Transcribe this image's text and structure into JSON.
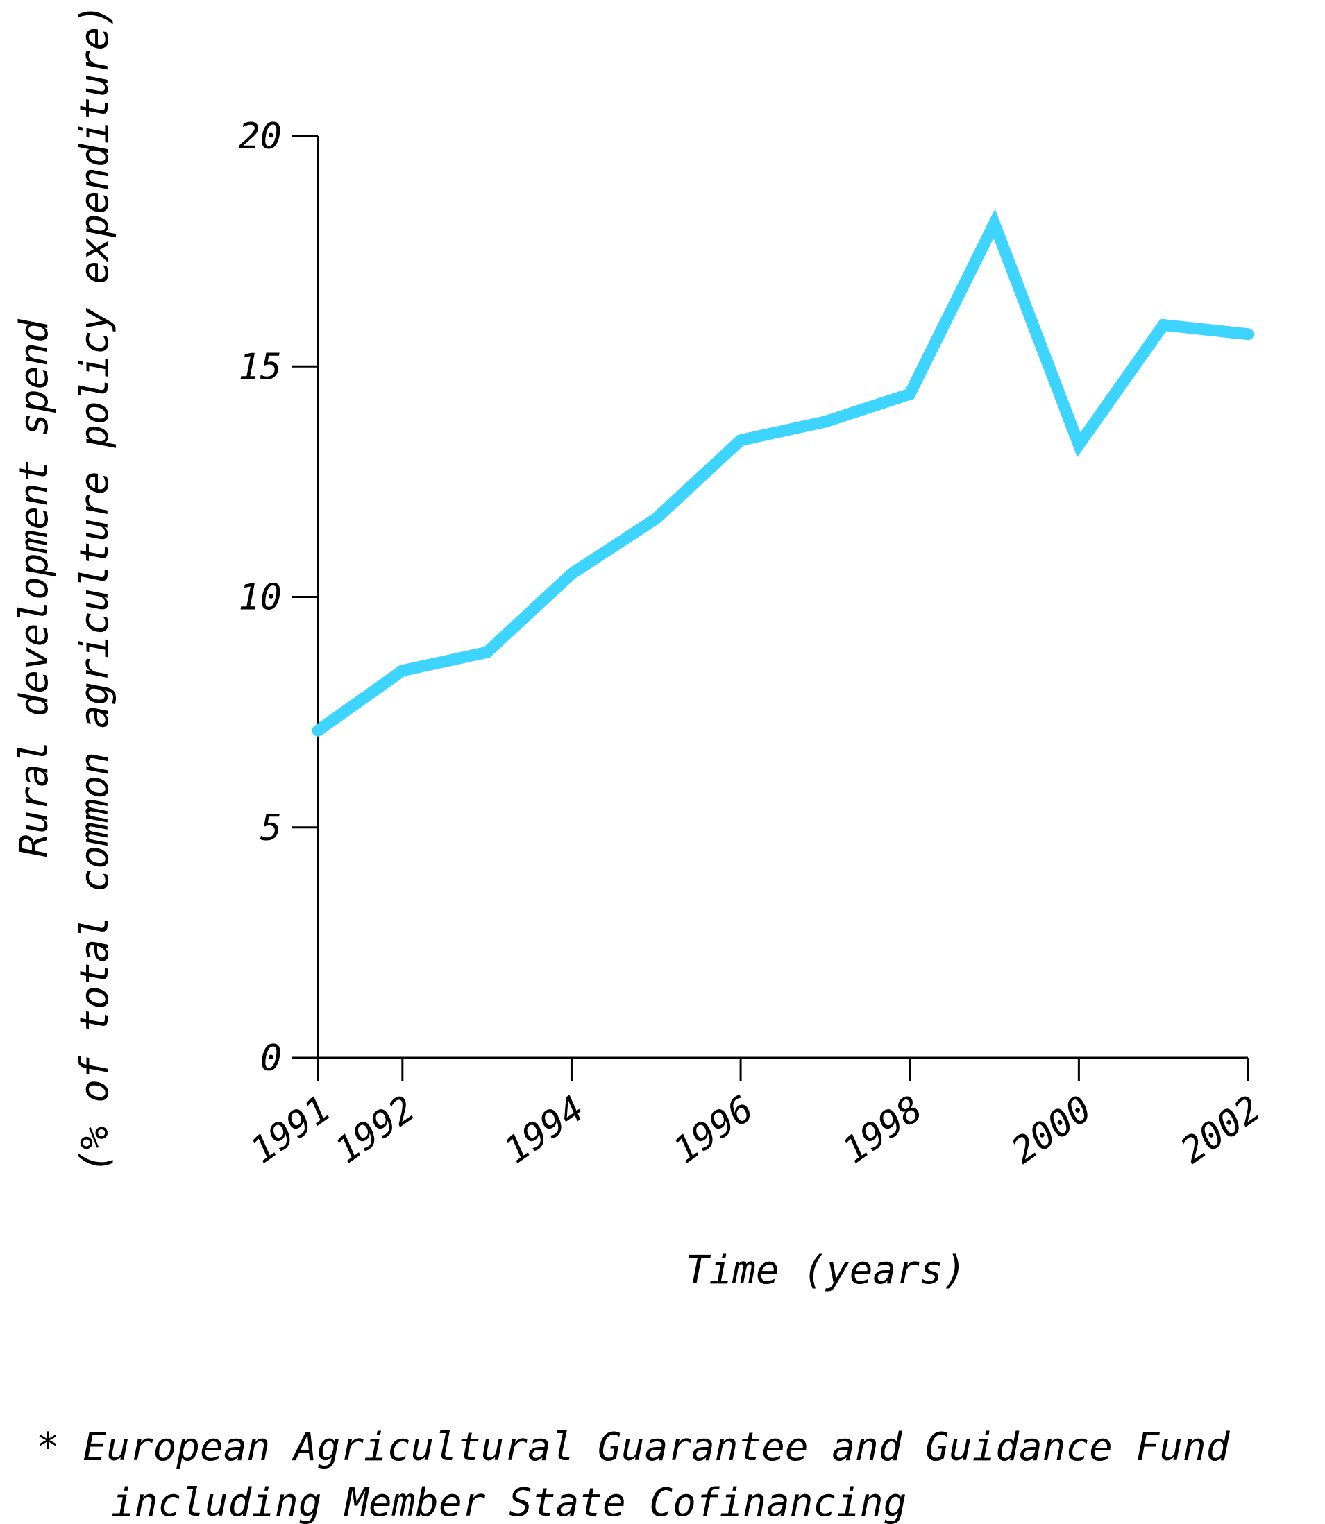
{
  "chart_data": {
    "type": "line",
    "title": "",
    "xlabel": "Time (years)",
    "ylabel": [
      "Rural development spend",
      "(% of total common agriculture policy expenditure)"
    ],
    "x": [
      1991,
      1992,
      1993,
      1994,
      1995,
      1996,
      1997,
      1998,
      1999,
      2000,
      2001,
      2002
    ],
    "x_tick_labels": [
      "1991",
      "1992",
      "1994",
      "1996",
      "1998",
      "2000",
      "2002"
    ],
    "x_tick_values": [
      1991,
      1992,
      1994,
      1996,
      1998,
      2000,
      2002
    ],
    "y_ticks": [
      0,
      5,
      10,
      15,
      20
    ],
    "ylim": [
      0,
      20
    ],
    "xlim": [
      1991,
      2002
    ],
    "grid": false,
    "series": [
      {
        "values": [
          7.1,
          8.4,
          8.8,
          10.5,
          11.7,
          13.4,
          13.8,
          14.4,
          18.1,
          13.3,
          15.9,
          15.7
        ],
        "color": "#3dd5ff"
      }
    ],
    "footnote": [
      "* European Agricultural Guarantee and Guidance Fund",
      "including Member State Cofinancing"
    ]
  }
}
